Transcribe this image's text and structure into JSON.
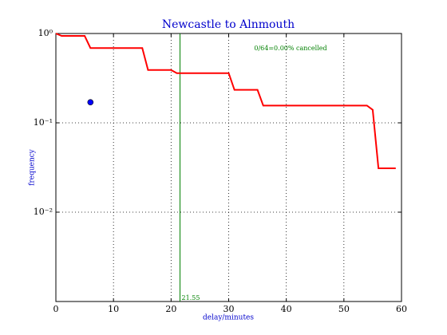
{
  "chart_data": {
    "type": "line",
    "title": "Newcastle to Alnmouth",
    "xlabel": "delay/minutes",
    "ylabel": "frequency",
    "annotation": "0/64=0.00% cancelled",
    "annotation_color": "green",
    "xlim": [
      0,
      60
    ],
    "xticks": [
      0,
      10,
      20,
      30,
      40,
      50,
      60
    ],
    "ylim": [
      0.001,
      1
    ],
    "yscale": "log",
    "yticks": [
      {
        "value": 1,
        "label": "10⁰"
      },
      {
        "value": 0.1,
        "label": "10⁻¹"
      },
      {
        "value": 0.01,
        "label": "10⁻²"
      }
    ],
    "grid": true,
    "series": [
      {
        "color": "red",
        "x": [
          0,
          1,
          5,
          6,
          15,
          16,
          20,
          21,
          30,
          31,
          35,
          36,
          54,
          55,
          56,
          59
        ],
        "values": [
          1.0,
          0.94,
          0.94,
          0.6875,
          0.6875,
          0.39,
          0.39,
          0.36,
          0.36,
          0.234,
          0.234,
          0.156,
          0.156,
          0.14,
          0.031,
          0.031
        ]
      }
    ],
    "marker": {
      "x": 6,
      "y": 0.17,
      "color": "blue"
    },
    "vline": {
      "x": 21.55,
      "color": "green"
    }
  }
}
